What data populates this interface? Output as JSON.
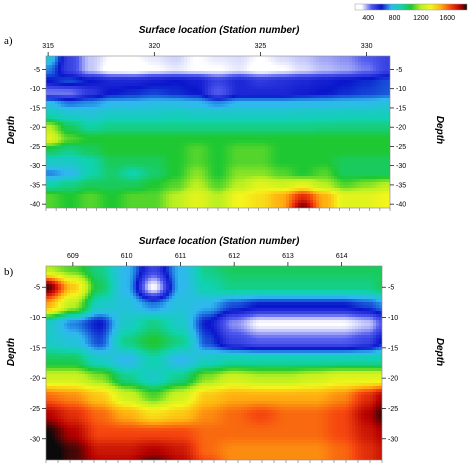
{
  "chart_data": [
    {
      "type": "heatmap",
      "panel_label": "a)",
      "title": "Surface location (Station number)",
      "ylabel": "Depth",
      "x_ticks": [
        "315",
        "320",
        "325",
        "330"
      ],
      "x_tick_values": [
        315,
        320,
        325,
        330
      ],
      "xlim": [
        314.9,
        331.1
      ],
      "y_ticks": [
        "-5",
        "-10",
        "-15",
        "-20",
        "-25",
        "-30",
        "-35",
        "-40"
      ],
      "y_tick_values": [
        -5,
        -10,
        -15,
        -20,
        -25,
        -30,
        -35,
        -40
      ],
      "ylim": [
        -41,
        -1.5
      ],
      "x": [
        315,
        316,
        317,
        318,
        319,
        320,
        321,
        322,
        323,
        324,
        325,
        326,
        327,
        328,
        329,
        330,
        331
      ],
      "y": [
        -2,
        -5,
        -8,
        -11,
        -14,
        -17,
        -20,
        -23,
        -26,
        -29,
        -32,
        -35,
        -38,
        -41
      ],
      "z": [
        [
          800,
          500,
          350,
          300,
          300,
          320,
          340,
          300,
          320,
          330,
          300,
          330,
          350,
          380,
          400,
          450,
          500
        ],
        [
          700,
          500,
          350,
          280,
          270,
          300,
          320,
          300,
          300,
          320,
          280,
          300,
          330,
          360,
          380,
          420,
          500
        ],
        [
          600,
          650,
          600,
          560,
          560,
          580,
          600,
          580,
          500,
          560,
          520,
          540,
          560,
          580,
          600,
          620,
          650
        ],
        [
          420,
          420,
          520,
          600,
          620,
          640,
          620,
          600,
          450,
          560,
          560,
          560,
          580,
          600,
          620,
          640,
          660
        ],
        [
          780,
          700,
          720,
          760,
          760,
          780,
          780,
          760,
          720,
          760,
          760,
          760,
          770,
          770,
          780,
          780,
          800
        ],
        [
          900,
          850,
          820,
          860,
          860,
          860,
          880,
          860,
          860,
          860,
          860,
          860,
          870,
          870,
          880,
          880,
          880
        ],
        [
          1200,
          1000,
          920,
          950,
          950,
          950,
          950,
          950,
          950,
          950,
          950,
          950,
          950,
          960,
          960,
          960,
          960
        ],
        [
          1300,
          1100,
          1050,
          1050,
          1050,
          1050,
          1050,
          1050,
          1050,
          1050,
          1050,
          1050,
          1050,
          1050,
          1050,
          1050,
          1050
        ],
        [
          1000,
          950,
          1000,
          1050,
          1050,
          1050,
          1050,
          1100,
          1050,
          1100,
          1100,
          1050,
          1050,
          1050,
          1050,
          1050,
          1050
        ],
        [
          850,
          850,
          900,
          1000,
          1000,
          1000,
          1050,
          1100,
          1050,
          1100,
          1100,
          1050,
          1050,
          1050,
          1000,
          1000,
          1000
        ],
        [
          700,
          750,
          900,
          980,
          900,
          980,
          1050,
          1150,
          1050,
          1150,
          1150,
          1100,
          1050,
          1100,
          1000,
          1000,
          1000
        ],
        [
          900,
          950,
          1000,
          1000,
          1000,
          1050,
          1100,
          1200,
          1100,
          1200,
          1300,
          1250,
          1300,
          1200,
          1100,
          1150,
          1200
        ],
        [
          1100,
          1050,
          1100,
          1050,
          1100,
          1100,
          1200,
          1300,
          1200,
          1350,
          1400,
          1500,
          1700,
          1500,
          1300,
          1300,
          1350
        ],
        [
          1100,
          1050,
          1100,
          1050,
          1100,
          1100,
          1200,
          1300,
          1200,
          1350,
          1400,
          1500,
          1850,
          1500,
          1300,
          1300,
          1350
        ]
      ]
    },
    {
      "type": "heatmap",
      "panel_label": "b)",
      "title": "Surface location (Station number)",
      "ylabel": "Depth",
      "x_ticks": [
        "609",
        "610",
        "611",
        "612",
        "613",
        "614"
      ],
      "x_tick_values": [
        609,
        610,
        611,
        612,
        613,
        614
      ],
      "xlim": [
        608.5,
        614.75
      ],
      "y_ticks": [
        "-5",
        "-10",
        "-15",
        "-20",
        "-25",
        "-30"
      ],
      "y_tick_values": [
        -5,
        -10,
        -15,
        -20,
        -25,
        -30
      ],
      "ylim": [
        -33.5,
        -1.5
      ],
      "x": [
        608.5,
        609,
        609.5,
        610,
        610.5,
        611,
        611.5,
        612,
        612.5,
        613,
        613.5,
        614,
        614.5,
        614.75
      ],
      "y": [
        -2,
        -5,
        -8,
        -11,
        -14,
        -17,
        -20,
        -23,
        -26,
        -29,
        -32,
        -34
      ],
      "z": [
        [
          1200,
          1100,
          950,
          750,
          500,
          750,
          950,
          1000,
          1000,
          1000,
          1000,
          1000,
          1000,
          1000
        ],
        [
          1900,
          1450,
          1000,
          750,
          300,
          750,
          900,
          950,
          950,
          950,
          950,
          950,
          950,
          1000
        ],
        [
          1500,
          1200,
          850,
          800,
          700,
          800,
          750,
          650,
          600,
          600,
          600,
          600,
          650,
          700
        ],
        [
          850,
          700,
          600,
          850,
          950,
          850,
          600,
          400,
          300,
          300,
          300,
          300,
          350,
          450
        ],
        [
          850,
          800,
          650,
          950,
          1050,
          950,
          650,
          500,
          450,
          450,
          450,
          450,
          500,
          600
        ],
        [
          1000,
          1000,
          850,
          750,
          900,
          750,
          850,
          900,
          900,
          900,
          900,
          900,
          900,
          900
        ],
        [
          1250,
          1250,
          1150,
          950,
          850,
          950,
          1150,
          1250,
          1200,
          1200,
          1250,
          1300,
          1300,
          1300
        ],
        [
          1600,
          1550,
          1450,
          1250,
          1100,
          1250,
          1450,
          1500,
          1500,
          1500,
          1500,
          1550,
          1700,
          1800
        ],
        [
          1800,
          1700,
          1600,
          1500,
          1400,
          1450,
          1550,
          1600,
          1650,
          1600,
          1600,
          1650,
          1800,
          1900
        ],
        [
          1950,
          1800,
          1650,
          1650,
          1650,
          1650,
          1600,
          1600,
          1600,
          1600,
          1600,
          1650,
          1750,
          1800
        ],
        [
          2000,
          1900,
          1750,
          1750,
          1800,
          1750,
          1600,
          1550,
          1550,
          1550,
          1550,
          1600,
          1700,
          1750
        ],
        [
          2000,
          1900,
          1800,
          1800,
          1900,
          1800,
          1650,
          1550,
          1550,
          1550,
          1550,
          1600,
          1700,
          1750
        ]
      ]
    }
  ],
  "colorbar": {
    "ticks": [
      "400",
      "800",
      "1200",
      "1600"
    ],
    "tick_values": [
      400,
      800,
      1200,
      1600
    ],
    "range": [
      200,
      1900
    ],
    "stops": [
      {
        "v": 300,
        "color": "#ffffff"
      },
      {
        "v": 450,
        "color": "#4f59ef"
      },
      {
        "v": 600,
        "color": "#0a16cc"
      },
      {
        "v": 750,
        "color": "#2fb8ef"
      },
      {
        "v": 900,
        "color": "#10d2b0"
      },
      {
        "v": 1050,
        "color": "#1ec832"
      },
      {
        "v": 1200,
        "color": "#bcf020"
      },
      {
        "v": 1350,
        "color": "#f4f51c"
      },
      {
        "v": 1500,
        "color": "#ffb010"
      },
      {
        "v": 1650,
        "color": "#f6450f"
      },
      {
        "v": 1800,
        "color": "#b50000"
      },
      {
        "v": 1950,
        "color": "#0a0a0a"
      }
    ]
  }
}
